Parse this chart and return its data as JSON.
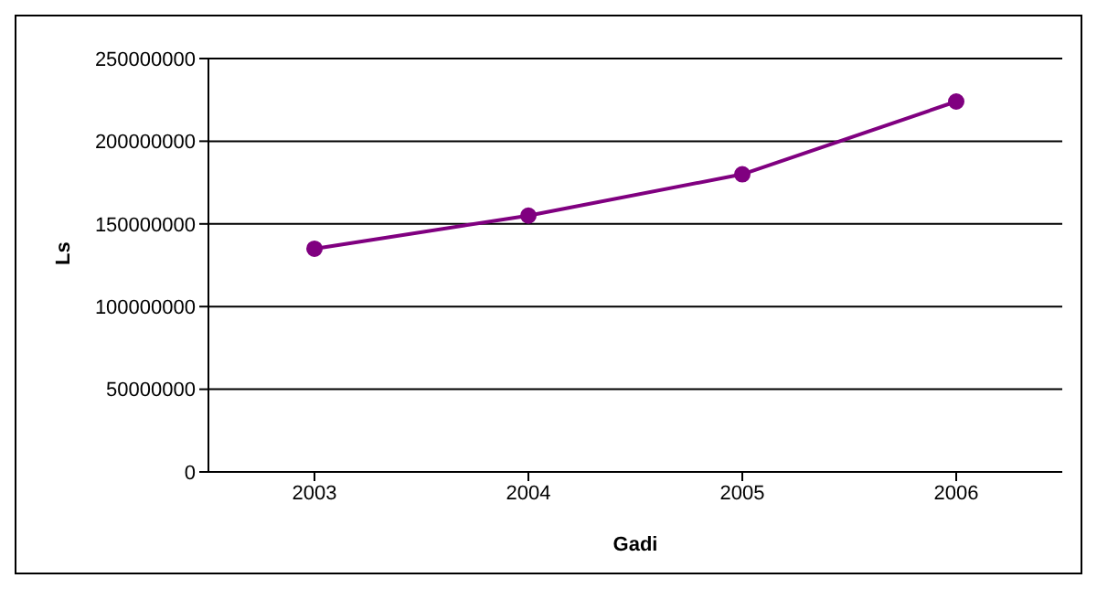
{
  "chart_data": {
    "type": "line",
    "xlabel": "Gadi",
    "ylabel": "Ls",
    "categories": [
      "2003",
      "2004",
      "2005",
      "2006"
    ],
    "series": [
      {
        "color": "#800080",
        "values": [
          135000000,
          155000000,
          180000000,
          224000000
        ]
      }
    ],
    "ylim": [
      0,
      250000000
    ],
    "yticks": [
      0,
      50000000,
      100000000,
      150000000,
      200000000,
      250000000
    ],
    "grid": "y",
    "legend": false,
    "marker": "circle",
    "line_style": "solid"
  }
}
